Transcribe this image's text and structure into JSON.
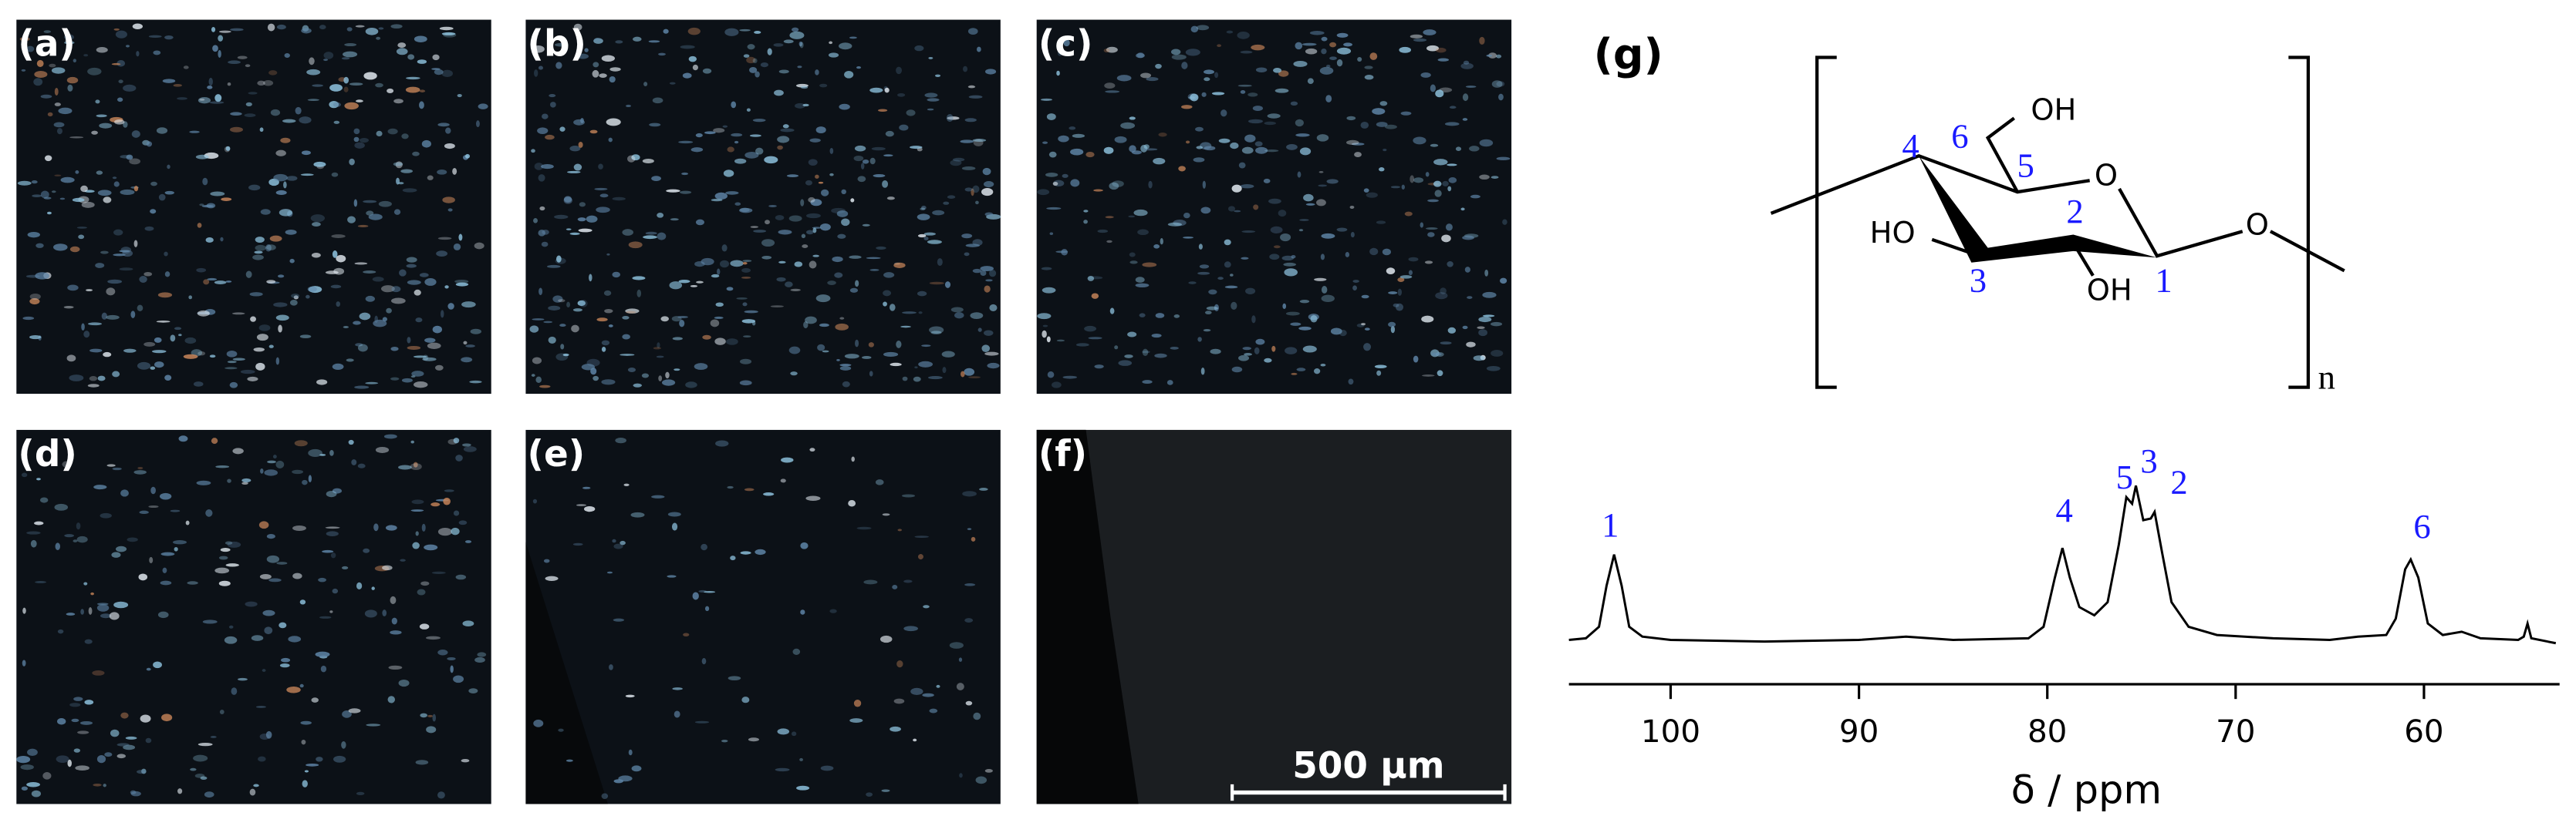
{
  "panels": [
    {
      "label": "(a)"
    },
    {
      "label": "(b)"
    },
    {
      "label": "(c)"
    },
    {
      "label": "(d)"
    },
    {
      "label": "(e)"
    },
    {
      "label": "(f)"
    }
  ],
  "scale_bar": "500 µm",
  "structure": {
    "label": "(g)",
    "numbers": [
      "1",
      "2",
      "3",
      "4",
      "5",
      "6"
    ],
    "groups": [
      "OH",
      "O",
      "HO",
      "OH",
      "O"
    ],
    "subscript": "n"
  },
  "chart_data": {
    "type": "line",
    "xlabel": "δ / ppm",
    "x": [
      105.4,
      104.5,
      103.8,
      103.4,
      103.0,
      102.6,
      102.2,
      101.5,
      100,
      95,
      90,
      87.5,
      85,
      81,
      80.2,
      79.6,
      79.2,
      78.8,
      78.3,
      77.5,
      76.8,
      76.2,
      75.8,
      75.5,
      75.3,
      74.9,
      74.5,
      74.3,
      73.9,
      73.4,
      72.5,
      71,
      68,
      65,
      63.5,
      62,
      61.5,
      61.0,
      60.7,
      60.3,
      59.8,
      59,
      58,
      57,
      55,
      54.7,
      54.5,
      54.3,
      53
    ],
    "values": [
      2,
      3,
      10,
      35,
      54,
      35,
      10,
      4,
      2,
      1,
      2,
      4,
      2,
      3,
      10,
      40,
      58,
      40,
      22,
      17,
      25,
      60,
      89,
      85,
      96,
      75,
      76,
      80,
      55,
      25,
      10,
      5,
      3,
      2,
      4,
      5,
      15,
      45,
      51,
      40,
      12,
      5,
      7,
      3,
      2,
      4,
      12,
      3,
      0
    ],
    "color": "#000000",
    "xlim": [
      105.4,
      52.8
    ],
    "xticks": [
      100,
      90,
      80,
      70,
      60
    ],
    "annotations": [
      {
        "text": "1",
        "x": 103.2,
        "y": 70
      },
      {
        "text": "4",
        "x": 79.1,
        "y": 79
      },
      {
        "text": "5",
        "x": 75.9,
        "y": 99
      },
      {
        "text": "3",
        "x": 74.6,
        "y": 109
      },
      {
        "text": "2",
        "x": 73.0,
        "y": 96
      },
      {
        "text": "6",
        "x": 60.1,
        "y": 69
      }
    ]
  }
}
